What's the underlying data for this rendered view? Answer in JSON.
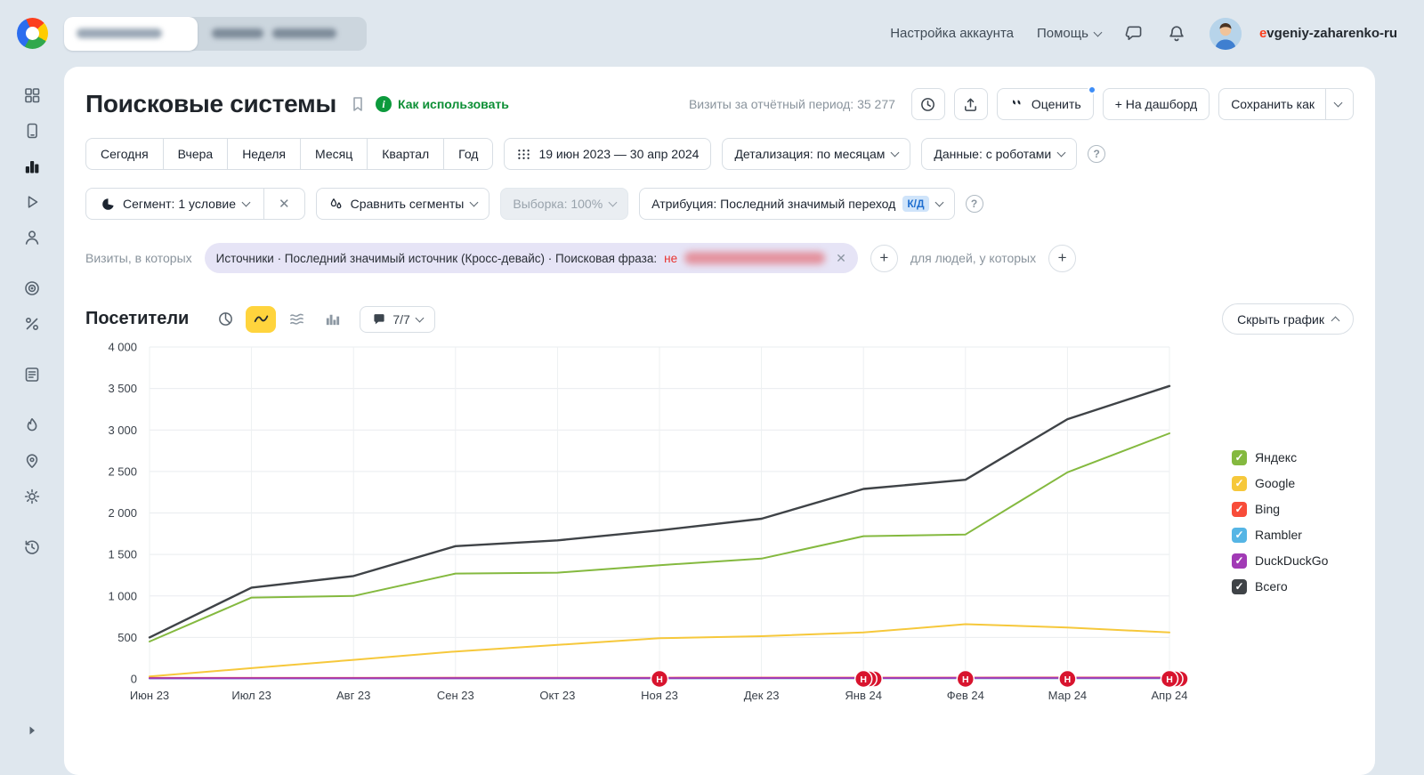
{
  "header": {
    "account_settings": "Настройка аккаунта",
    "help": "Помощь",
    "username": "evgeniy-zaharenko-ru"
  },
  "report": {
    "title": "Поисковые системы",
    "how_to_use": "Как использовать",
    "visits_summary": "Визиты за отчётный период: 35 277",
    "rate": "Оценить",
    "to_dashboard": "+ На дашборд",
    "save_as": "Сохранить как"
  },
  "filters": {
    "periods": [
      "Сегодня",
      "Вчера",
      "Неделя",
      "Месяц",
      "Квартал",
      "Год"
    ],
    "date_range": "19 июн 2023 — 30 апр 2024",
    "detalization": "Детализация: по месяцам",
    "data_mode": "Данные: с роботами",
    "segment": "Сегмент: 1 условие",
    "compare_segments": "Сравнить сегменты",
    "sampling": "Выборка: 100%",
    "attribution": "Атрибуция: Последний значимый переход",
    "attribution_badge": "К/Д"
  },
  "segment_bar": {
    "visits_label": "Визиты, в которых",
    "condition_prefix": "Источники · Последний значимый источник (Кросс-девайс) · Поисковая фраза:",
    "condition_not": "не",
    "people_label": "для людей, у которых"
  },
  "chart_section": {
    "title": "Посетители",
    "comments": "7/7",
    "hide_chart": "Скрыть график"
  },
  "chart_data": {
    "type": "line",
    "title": "Посетители",
    "x": [
      "Июн 23",
      "Июл 23",
      "Авг 23",
      "Сен 23",
      "Окт 23",
      "Ноя 23",
      "Дек 23",
      "Янв 24",
      "Фев 24",
      "Мар 24",
      "Апр 24"
    ],
    "ylim": [
      0,
      4000
    ],
    "ytick_step": 500,
    "grid": true,
    "legend_position": "right",
    "series": [
      {
        "name": "Яндекс",
        "color": "#84b93f",
        "values": [
          450,
          980,
          1000,
          1270,
          1280,
          1370,
          1450,
          1720,
          1740,
          2490,
          2960
        ]
      },
      {
        "name": "Google",
        "color": "#f6c83b",
        "values": [
          30,
          130,
          230,
          330,
          410,
          490,
          515,
          560,
          660,
          620,
          560
        ]
      },
      {
        "name": "Bing",
        "color": "#f84c39",
        "values": [
          12,
          12,
          12,
          14,
          14,
          14,
          15,
          15,
          15,
          16,
          16
        ]
      },
      {
        "name": "Rambler",
        "color": "#55b5e5",
        "values": [
          5,
          5,
          5,
          6,
          6,
          6,
          7,
          7,
          7,
          8,
          8
        ]
      },
      {
        "name": "DuckDuckGo",
        "color": "#a13ab5",
        "values": [
          8,
          8,
          9,
          9,
          10,
          10,
          11,
          11,
          12,
          12,
          12
        ]
      },
      {
        "name": "Всего",
        "color": "#3f4347",
        "values": [
          500,
          1100,
          1240,
          1600,
          1670,
          1790,
          1930,
          2290,
          2400,
          3130,
          3530
        ]
      }
    ],
    "annotations": {
      "label": "Н",
      "color": "#d8142e",
      "points": [
        {
          "x": "Ноя 23",
          "count": 1
        },
        {
          "x": "Янв 24",
          "count": 3
        },
        {
          "x": "Фев 24",
          "count": 1
        },
        {
          "x": "Мар 24",
          "count": 1
        },
        {
          "x": "Апр 24",
          "count": 3
        }
      ]
    }
  }
}
